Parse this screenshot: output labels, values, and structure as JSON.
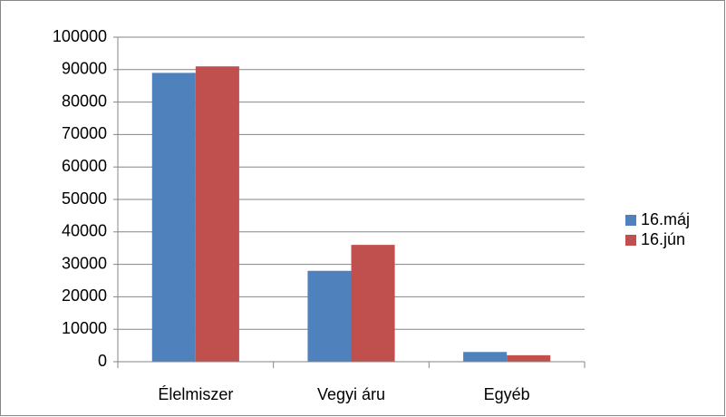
{
  "chart_data": {
    "type": "bar",
    "categories": [
      "Élelmiszer",
      "Vegyi áru",
      "Egyéb"
    ],
    "series": [
      {
        "name": "16.máj",
        "color": "#4f81bd",
        "values": [
          89000,
          28000,
          3000
        ]
      },
      {
        "name": "16.jún",
        "color": "#c0504d",
        "values": [
          91000,
          36000,
          2000
        ]
      }
    ],
    "ylim": [
      0,
      100000
    ],
    "yticks": [
      0,
      10000,
      20000,
      30000,
      40000,
      50000,
      60000,
      70000,
      80000,
      90000,
      100000
    ],
    "grid": true,
    "legend": "right"
  }
}
